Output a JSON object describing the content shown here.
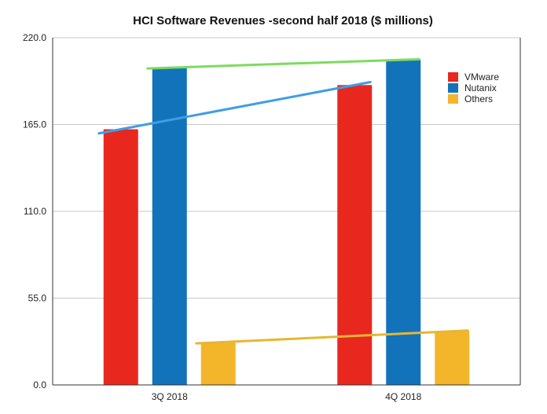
{
  "chart_data": {
    "type": "bar",
    "title": "HCI Software Revenues -second half 2018 ($ millions)",
    "xlabel": "",
    "ylabel": "",
    "categories": [
      "3Q 2018",
      "4Q 2018"
    ],
    "series": [
      {
        "name": "VMware",
        "values": [
          162,
          190
        ],
        "color": "#e8271f"
      },
      {
        "name": "Nutanix",
        "values": [
          201,
          206
        ],
        "color": "#1273bb"
      },
      {
        "name": "Others",
        "values": [
          27,
          34
        ],
        "color": "#f3b62b"
      }
    ],
    "ylim": [
      0,
      220
    ],
    "yticks": [
      "0.0",
      "55.0",
      "110.0",
      "165.0",
      "220.0"
    ],
    "ytick_values": [
      0,
      55,
      110,
      165,
      220
    ],
    "grid": true,
    "legend_position": "top-right",
    "trend_lines": [
      {
        "series": "VMware",
        "color": "#3f9de6"
      },
      {
        "series": "Nutanix",
        "color": "#7ddb5f"
      },
      {
        "series": "Others",
        "color": "#e7b632"
      }
    ]
  }
}
